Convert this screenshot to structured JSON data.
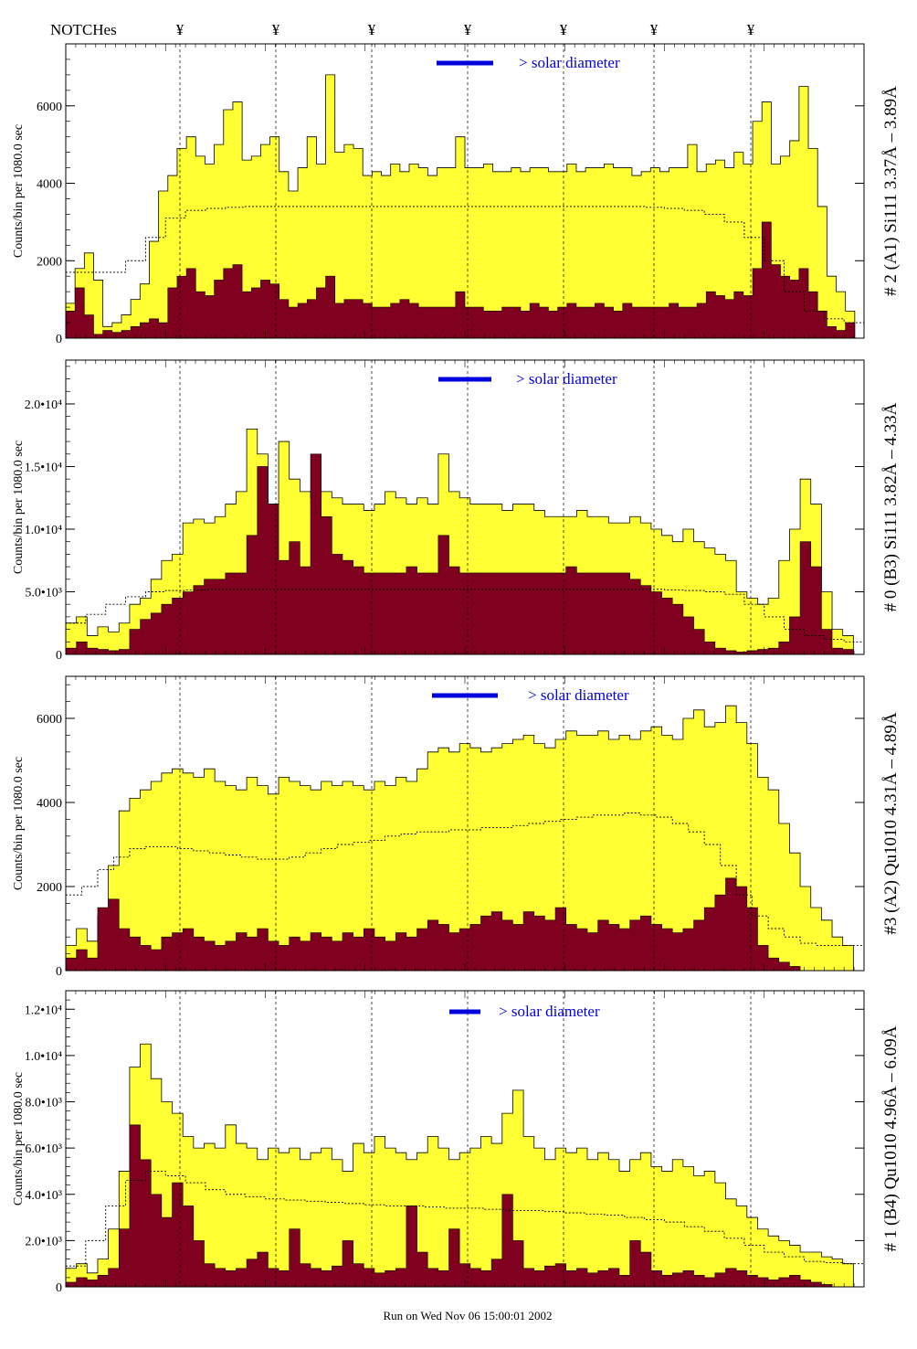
{
  "header": {
    "notch_label": "NOTCHes",
    "notch_symbol": "¥"
  },
  "footer": {
    "run_text": "Run on Wed Nov 06 15:00:01 2002"
  },
  "colors": {
    "fill_total": "#ffff33",
    "fill_sub": "#800020",
    "solar_bar": "#0000dd",
    "solar_text": "#0000dd"
  },
  "chart_data": [
    {
      "type": "area",
      "title": "# 2 (A1) Si111  3.37Å – 3.89Å",
      "ylabel": "Counts/bin per   1080.0 sec",
      "ylim": [
        0,
        7600
      ],
      "yticks": [
        0,
        2000,
        4000,
        6000
      ],
      "ytick_labels": [
        "0",
        "2000",
        "4000",
        "6000"
      ],
      "legend": "> solar diameter",
      "series": [
        {
          "values": [
            900,
            1800,
            2200,
            1500,
            300,
            400,
            600,
            1000,
            1400,
            2500,
            3800,
            4200,
            4900,
            5200,
            4700,
            4500,
            5000,
            5900,
            6100,
            4600,
            4700,
            5000,
            5200,
            4300,
            3800,
            4400,
            5200,
            4500,
            6800,
            4800,
            5000,
            4900,
            4200,
            4300,
            4200,
            4500,
            4300,
            4500,
            4400,
            4200,
            4400,
            4400,
            5200,
            4400,
            4400,
            4500,
            4300,
            4300,
            4400,
            4300,
            4400,
            4400,
            4300,
            4300,
            4500,
            4300,
            4400,
            4400,
            4500,
            4400,
            4400,
            4200,
            4300,
            4400,
            4300,
            4400,
            4400,
            5000,
            4300,
            4500,
            4600,
            4400,
            4800,
            4500,
            5600,
            6100,
            4500,
            4700,
            5100,
            6500,
            4900,
            3400,
            1600,
            1200,
            700,
            0
          ]
        },
        {
          "values": [
            700,
            1300,
            600,
            100,
            200,
            150,
            200,
            300,
            400,
            500,
            400,
            1300,
            1600,
            1800,
            1200,
            1100,
            1500,
            1800,
            1900,
            1200,
            1300,
            1500,
            1400,
            1000,
            800,
            900,
            1000,
            1300,
            1600,
            900,
            1000,
            1000,
            900,
            800,
            800,
            900,
            1000,
            900,
            800,
            800,
            800,
            800,
            1200,
            800,
            800,
            700,
            700,
            800,
            800,
            700,
            900,
            800,
            700,
            800,
            900,
            800,
            800,
            900,
            800,
            700,
            900,
            800,
            800,
            800,
            800,
            900,
            800,
            800,
            900,
            1200,
            1100,
            1000,
            1200,
            1100,
            1800,
            3000,
            1900,
            1600,
            1500,
            1800,
            1200,
            700,
            300,
            200,
            400,
            0
          ]
        },
        {
          "values": [
            1700,
            1700,
            1700,
            2000,
            2600,
            3100,
            3300,
            3350,
            3380,
            3400,
            3400,
            3400,
            3400,
            3400,
            3400,
            3400,
            3400,
            3400,
            3400,
            3400,
            3400,
            3400,
            3400,
            3400,
            3400,
            3400,
            3400,
            3400,
            3400,
            3380,
            3350,
            3300,
            3200,
            3000,
            2600,
            2000,
            1200,
            700,
            500,
            400
          ]
        }
      ]
    },
    {
      "type": "area",
      "title": "# 0 (B3) Si111  3.82Å – 4.33Å",
      "ylabel": "Counts/bin per   1080.0 sec",
      "ylim": [
        0,
        23500
      ],
      "yticks": [
        0,
        5000,
        10000,
        15000,
        20000
      ],
      "ytick_labels": [
        "0",
        "5.0•10³",
        "1.0•10⁴",
        "1.5•10⁴",
        "2.0•10⁴"
      ],
      "legend": "> solar diameter",
      "series": [
        {
          "values": [
            2500,
            3000,
            1500,
            2200,
            1800,
            2500,
            4000,
            4500,
            6000,
            7500,
            8000,
            10500,
            10800,
            10500,
            11000,
            12000,
            13000,
            18000,
            16000,
            12000,
            17000,
            14000,
            13000,
            12500,
            13000,
            12500,
            12000,
            12000,
            11500,
            12000,
            13000,
            12500,
            12000,
            12500,
            12000,
            16000,
            13000,
            12500,
            12000,
            12000,
            12000,
            11500,
            12000,
            12000,
            11500,
            11000,
            11000,
            11000,
            11500,
            11000,
            11000,
            10500,
            10500,
            11000,
            10500,
            10000,
            9500,
            9000,
            10000,
            9000,
            8500,
            8000,
            7500,
            5000,
            4500,
            4000,
            4500,
            7500,
            10000,
            14000,
            12000,
            5000,
            2000,
            1500,
            0
          ]
        },
        {
          "values": [
            500,
            1000,
            500,
            400,
            300,
            400,
            2000,
            2800,
            3300,
            4000,
            4500,
            5000,
            5500,
            6000,
            6000,
            6500,
            6500,
            9500,
            15000,
            12000,
            7500,
            9000,
            7000,
            16000,
            11000,
            8000,
            7500,
            7000,
            6500,
            6500,
            6500,
            6500,
            7000,
            6500,
            6500,
            9500,
            7000,
            6500,
            6500,
            6500,
            6500,
            6500,
            6500,
            6500,
            6500,
            6500,
            6500,
            7000,
            6500,
            6500,
            6500,
            6500,
            6500,
            6000,
            5500,
            5000,
            4500,
            4000,
            3000,
            2000,
            1000,
            500,
            300,
            200,
            300,
            400,
            500,
            1000,
            3000,
            9000,
            7000,
            2000,
            500,
            400,
            0
          ]
        },
        {
          "values": [
            2500,
            3200,
            4000,
            4600,
            5000,
            5100,
            5150,
            5200,
            5200,
            5200,
            5200,
            5200,
            5200,
            5200,
            5200,
            5200,
            5200,
            5200,
            5200,
            5200,
            5200,
            5200,
            5200,
            5200,
            5200,
            5200,
            5200,
            5200,
            5200,
            5200,
            5150,
            5100,
            5000,
            4800,
            4000,
            3000,
            2000,
            1500,
            1200,
            1000
          ]
        }
      ]
    },
    {
      "type": "area",
      "title": "#3 (A2) Qu1010  4.31Å – 4.89Å",
      "ylabel": "Counts/bin per   1080.0 sec",
      "ylim": [
        0,
        7000
      ],
      "yticks": [
        0,
        2000,
        4000,
        6000
      ],
      "ytick_labels": [
        "0",
        "2000",
        "4000",
        "6000"
      ],
      "legend": "> solar diameter",
      "series": [
        {
          "values": [
            600,
            1000,
            700,
            1300,
            2500,
            3800,
            4100,
            4300,
            4500,
            4700,
            4800,
            4700,
            4600,
            4800,
            4500,
            4400,
            4300,
            4600,
            4400,
            4200,
            4600,
            4500,
            4400,
            4300,
            4500,
            4400,
            4500,
            4400,
            4300,
            4500,
            4400,
            4600,
            4500,
            4800,
            5200,
            5300,
            5200,
            5400,
            5300,
            5200,
            5300,
            5400,
            5500,
            5600,
            5400,
            5300,
            5500,
            5700,
            5600,
            5600,
            5700,
            5500,
            5600,
            5500,
            5700,
            5800,
            5600,
            5500,
            6000,
            6200,
            5800,
            5900,
            6300,
            5900,
            5400,
            4600,
            4300,
            3500,
            2800,
            2000,
            1500,
            1200,
            800,
            600,
            0
          ]
        },
        {
          "values": [
            300,
            500,
            300,
            1500,
            1700,
            1000,
            800,
            600,
            500,
            800,
            900,
            1000,
            800,
            700,
            600,
            700,
            900,
            800,
            1000,
            700,
            600,
            800,
            700,
            900,
            800,
            700,
            900,
            800,
            1000,
            800,
            700,
            900,
            800,
            1000,
            1200,
            1100,
            900,
            1000,
            1100,
            1300,
            1400,
            1200,
            1100,
            1400,
            1300,
            1200,
            1500,
            1100,
            1000,
            900,
            1200,
            1100,
            1000,
            1200,
            1300,
            1100,
            1000,
            900,
            1000,
            1200,
            1500,
            1800,
            2200,
            2000,
            1500,
            600,
            300,
            200,
            100,
            0,
            0,
            0,
            0,
            0,
            0
          ]
        },
        {
          "values": [
            1800,
            2000,
            2400,
            2700,
            2900,
            2950,
            2950,
            2900,
            2850,
            2800,
            2750,
            2700,
            2650,
            2650,
            2700,
            2800,
            2900,
            3000,
            3050,
            3100,
            3200,
            3250,
            3300,
            3300,
            3350,
            3350,
            3400,
            3400,
            3450,
            3500,
            3550,
            3600,
            3650,
            3700,
            3700,
            3750,
            3700,
            3650,
            3500,
            3300,
            3000,
            2500,
            1800,
            1300,
            1000,
            800,
            650,
            600,
            600,
            600
          ]
        }
      ]
    },
    {
      "type": "area",
      "title": "# 1 (B4) Qu1010 4.96Å – 6.09Å",
      "ylabel": "Counts/bin per   1080.0 sec",
      "ylim": [
        0,
        12800
      ],
      "yticks": [
        0,
        2000,
        4000,
        6000,
        8000,
        10000,
        12000
      ],
      "ytick_labels": [
        "0",
        "2.0•10³",
        "4.0•10³",
        "6.0•10³",
        "8.0•10³",
        "1.0•10⁴",
        "1.2•10⁴"
      ],
      "legend": "> solar diameter",
      "series": [
        {
          "values": [
            800,
            1000,
            600,
            1200,
            2500,
            5000,
            9500,
            10500,
            9000,
            8000,
            7500,
            6500,
            6000,
            6200,
            6000,
            7000,
            6200,
            6000,
            5500,
            6000,
            5800,
            6000,
            5500,
            5800,
            6000,
            5500,
            5000,
            6200,
            5800,
            6500,
            6000,
            5800,
            5500,
            5800,
            6500,
            6000,
            5500,
            5800,
            6000,
            6500,
            6200,
            7500,
            8500,
            6500,
            6000,
            5500,
            6000,
            5800,
            6000,
            5500,
            5800,
            5500,
            5000,
            5500,
            5800,
            5200,
            5000,
            5500,
            5200,
            4800,
            5000,
            4500,
            3800,
            3500,
            3000,
            2500,
            2200,
            2000,
            1800,
            1500,
            1500,
            1300,
            1200,
            1000,
            0
          ]
        },
        {
          "values": [
            200,
            400,
            300,
            500,
            800,
            2500,
            7000,
            5500,
            4000,
            3000,
            4500,
            3500,
            2000,
            1000,
            800,
            700,
            800,
            1200,
            1500,
            800,
            700,
            2500,
            1000,
            800,
            700,
            900,
            2000,
            1000,
            800,
            600,
            700,
            800,
            3500,
            1500,
            800,
            700,
            2500,
            1000,
            800,
            700,
            1200,
            4000,
            2000,
            800,
            700,
            900,
            1000,
            700,
            800,
            600,
            700,
            800,
            500,
            2000,
            1500,
            700,
            500,
            600,
            700,
            500,
            400,
            600,
            800,
            700,
            500,
            400,
            300,
            400,
            500,
            300,
            200,
            100,
            0,
            0,
            0
          ]
        },
        {
          "values": [
            900,
            2000,
            3500,
            4600,
            5000,
            4800,
            4500,
            4200,
            4000,
            3900,
            3800,
            3750,
            3700,
            3650,
            3600,
            3550,
            3500,
            3500,
            3450,
            3400,
            3400,
            3350,
            3300,
            3300,
            3250,
            3200,
            3150,
            3100,
            3000,
            2900,
            2800,
            2600,
            2400,
            2100,
            1800,
            1500,
            1300,
            1100,
            1050,
            1000
          ]
        }
      ]
    }
  ]
}
